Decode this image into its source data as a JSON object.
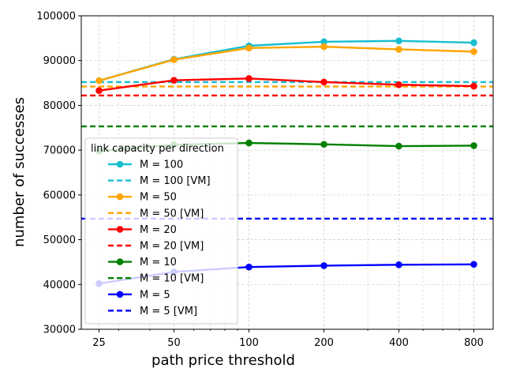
{
  "chart_data": {
    "type": "line",
    "xlabel": "path price threshold",
    "ylabel": "number of successes",
    "xscale": "log2",
    "x": [
      25,
      50,
      100,
      200,
      400,
      800
    ],
    "x_tick_labels": [
      "25",
      "50",
      "100",
      "200",
      "400",
      "800"
    ],
    "ylim": [
      30000,
      100000
    ],
    "y_ticks": [
      30000,
      40000,
      50000,
      60000,
      70000,
      80000,
      90000,
      100000
    ],
    "y_tick_labels": [
      "30000",
      "40000",
      "50000",
      "60000",
      "70000",
      "80000",
      "90000",
      "100000"
    ],
    "grid": true,
    "legend_title": "link capacity per direction",
    "legend_position": "center-left",
    "series": [
      {
        "name": "M = 100",
        "color": "#17becf",
        "style": "solid",
        "marker": true,
        "values": [
          85500,
          90300,
          93300,
          94200,
          94400,
          94000
        ]
      },
      {
        "name": "M = 100 [VM]",
        "color": "#17becf",
        "style": "dashed",
        "marker": false,
        "constant": 85200
      },
      {
        "name": "M = 50",
        "color": "#ffa500",
        "style": "solid",
        "marker": true,
        "values": [
          85500,
          90200,
          92800,
          93100,
          92500,
          92000
        ]
      },
      {
        "name": "M = 50 [VM]",
        "color": "#ffa500",
        "style": "dashed",
        "marker": false,
        "constant": 84200
      },
      {
        "name": "M = 20",
        "color": "#ff0000",
        "style": "solid",
        "marker": true,
        "values": [
          83300,
          85600,
          86000,
          85200,
          84600,
          84300
        ]
      },
      {
        "name": "M = 20 [VM]",
        "color": "#ff0000",
        "style": "dashed",
        "marker": false,
        "constant": 82200
      },
      {
        "name": "M = 10",
        "color": "#008000",
        "style": "solid",
        "marker": true,
        "values": [
          69800,
          71200,
          71600,
          71300,
          70900,
          71000
        ]
      },
      {
        "name": "M = 10 [VM]",
        "color": "#008000",
        "style": "dashed",
        "marker": false,
        "constant": 75300
      },
      {
        "name": "M = 5",
        "color": "#0000ff",
        "style": "solid",
        "marker": true,
        "values": [
          40200,
          42800,
          43900,
          44200,
          44400,
          44500
        ]
      },
      {
        "name": "M = 5 [VM]",
        "color": "#0000ff",
        "style": "dashed",
        "marker": false,
        "constant": 54700
      }
    ]
  }
}
